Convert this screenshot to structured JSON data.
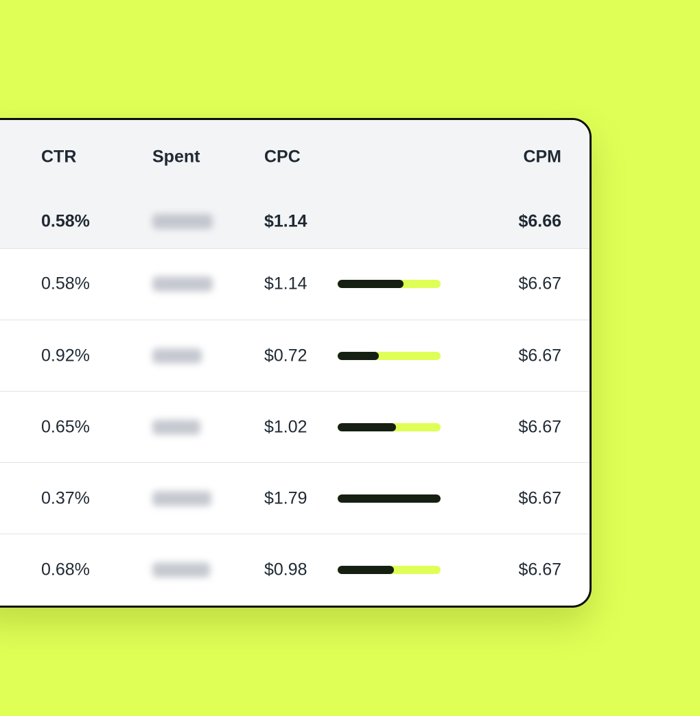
{
  "table": {
    "headers": [
      "CTR",
      "Spent",
      "CPC",
      "CPM"
    ],
    "summary": {
      "ctr": "0.58%",
      "cpc": "$1.14",
      "cpm": "$6.66"
    },
    "rows": [
      {
        "ctr": "0.58%",
        "cpc": {
          "value": 1.14,
          "label": "$1.14"
        },
        "cpm": "$6.67"
      },
      {
        "ctr": "0.92%",
        "cpc": {
          "value": 0.72,
          "label": "$0.72"
        },
        "cpm": "$6.67"
      },
      {
        "ctr": "0.65%",
        "cpc": {
          "value": 1.02,
          "label": "$1.02"
        },
        "cpm": "$6.67"
      },
      {
        "ctr": "0.37%",
        "cpc": {
          "value": 1.79,
          "label": "$1.79"
        },
        "cpm": "$6.67"
      },
      {
        "ctr": "0.68%",
        "cpc": {
          "value": 0.98,
          "label": "$0.98"
        },
        "cpm": "$6.67"
      }
    ]
  }
}
